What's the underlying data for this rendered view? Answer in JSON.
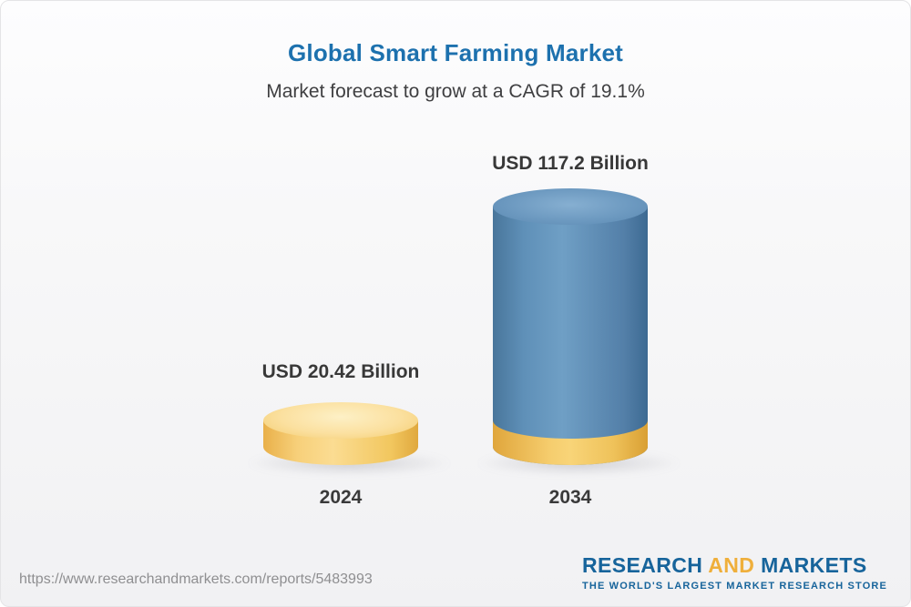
{
  "title": "Global Smart Farming Market",
  "subtitle": "Market forecast to grow at a CAGR of 19.1%",
  "chart_data": {
    "type": "bar",
    "title": "Global Smart Farming Market",
    "subtitle": "Market forecast to grow at a CAGR of 19.1%",
    "cagr_percent": 19.1,
    "categories": [
      "2024",
      "2034"
    ],
    "values": [
      20.42,
      117.2
    ],
    "value_labels": [
      "USD 20.42 Billion",
      "USD 117.2 Billion"
    ],
    "unit": "USD Billion",
    "xlabel": "",
    "ylabel": "",
    "grid": false,
    "legend": "none",
    "bar_style": "3d-cylinder",
    "colors": {
      "bar_2024": "#f6ce6f",
      "bar_2034": "#5f90b8",
      "bar_2034_base_segment": "#f6ce6f",
      "title_blue": "#1d71ae",
      "label_text": "#383838"
    }
  },
  "footer": {
    "url": "https://www.researchandmarkets.com/reports/5483993",
    "logo": {
      "research": "RESEARCH",
      "and": "AND",
      "markets": "MARKETS",
      "tagline": "THE WORLD'S LARGEST MARKET RESEARCH STORE",
      "blue": "#17649b",
      "gold": "#efaf3b"
    }
  }
}
